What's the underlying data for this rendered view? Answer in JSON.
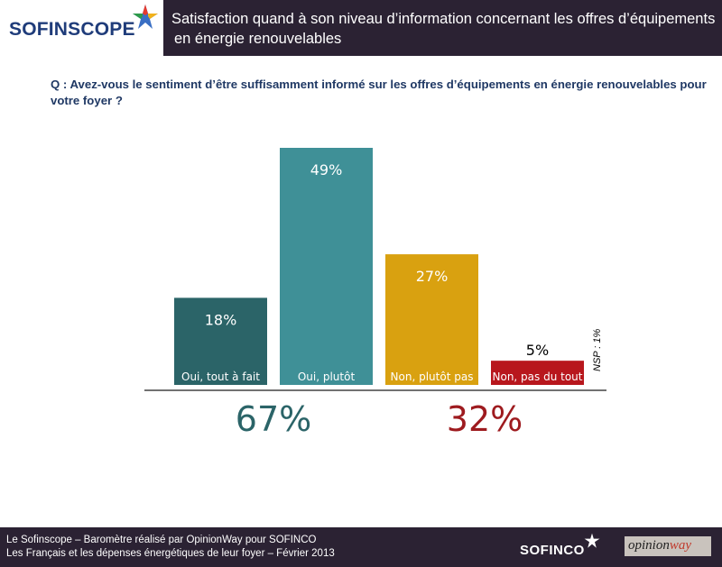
{
  "header": {
    "logo_text": "SOFINSCOPE",
    "title_line1": "Satisfaction quand à son niveau d’information concernant les offres d’équipements",
    "title_line2": "en énergie renouvelables"
  },
  "question": "Q : Avez-vous le sentiment d’être suffisamment informé sur les offres d’équipements en énergie renouvelables pour votre foyer ?",
  "chart_data": {
    "type": "bar",
    "categories": [
      "Oui, tout à fait",
      "Oui, plutôt",
      "Non, plutôt pas",
      "Non, pas du tout"
    ],
    "values": [
      18,
      49,
      27,
      5
    ],
    "value_labels": [
      "18%",
      "49%",
      "27%",
      "5%"
    ],
    "colors": [
      "#2b6468",
      "#3f9097",
      "#d9a110",
      "#b8171d"
    ],
    "totals": [
      {
        "label": "67%",
        "color": "#2b6468"
      },
      {
        "label": "32%",
        "color": "#9e1b1f"
      }
    ],
    "ylim": [
      0,
      49
    ]
  },
  "nsp_note": "NSP : 1%",
  "footer": {
    "line1": "Le Sofinscope – Baromètre réalisé par OpinionWay pour SOFINCO",
    "line2": "Les Français et les dépenses énergétiques de leur foyer – Février 2013",
    "logo": "SOFINCO",
    "partner_main": "opinion",
    "partner_accent": "way"
  }
}
